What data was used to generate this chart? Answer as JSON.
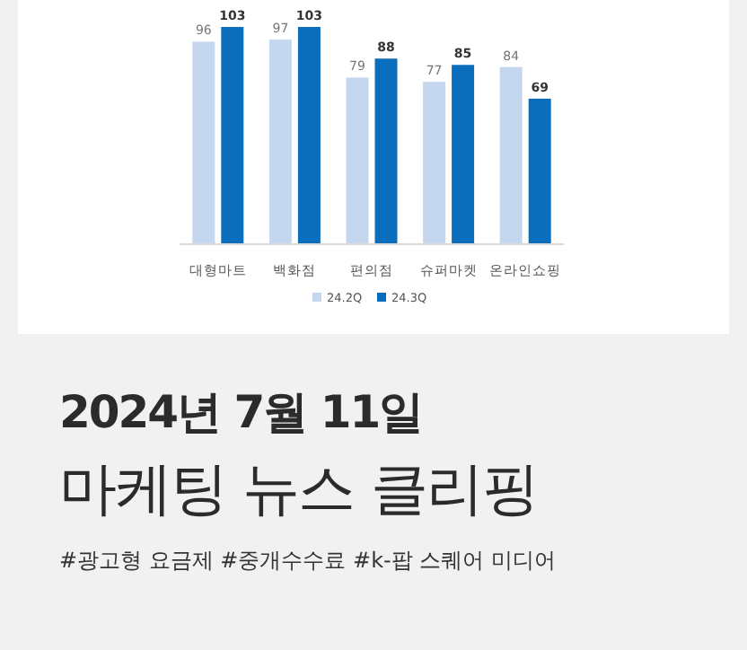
{
  "chart_data": {
    "type": "bar",
    "title": "2024년 7월 11일",
    "subtitle": "마케팅 뉴스 클리핑",
    "annotations": [
      "#광고형 요금제 #중개수수료 #k-팝 스퀘어 미디어"
    ],
    "categories": [
      "대형마트",
      "백화점",
      "편의점",
      "슈퍼마켓",
      "온라인쇼핑"
    ],
    "series": [
      {
        "name": "24.2Q",
        "color": "#c5d7ee",
        "values": [
          96,
          97,
          79,
          77,
          84
        ]
      },
      {
        "name": "24.3Q",
        "color": "#0a6ebd",
        "values": [
          103,
          103,
          88,
          85,
          69
        ]
      }
    ],
    "data_labels": true,
    "legend": "bottom"
  }
}
